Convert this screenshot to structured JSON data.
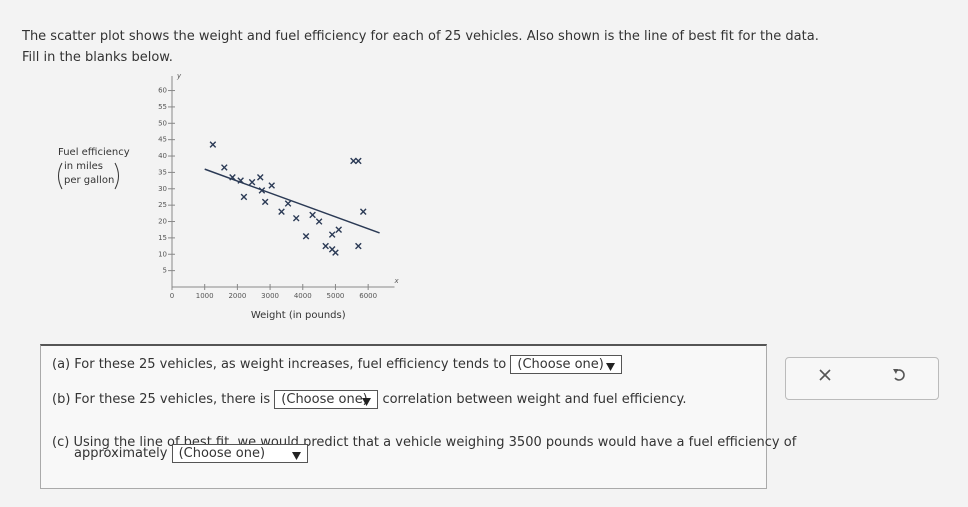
{
  "prompt": {
    "text": "The scatter plot shows the weight and fuel efficiency for each of 25 vehicles. Also shown is the line of best fit for the data.",
    "instruction": "Fill in the blanks below."
  },
  "chart_data": {
    "type": "scatter",
    "x_label": "Weight (in pounds)",
    "y_label": [
      "Fuel efficiency",
      "in miles",
      "per gallon"
    ],
    "x_axis_letter": "x",
    "y_axis_letter": "y",
    "x": [
      1250,
      5550,
      5700,
      1600,
      1850,
      2100,
      2450,
      2700,
      3050,
      2750,
      2200,
      2850,
      3550,
      3350,
      3800,
      4300,
      4500,
      5100,
      4900,
      5850,
      4100,
      5700,
      4700,
      4900,
      5000
    ],
    "values": [
      43.5,
      38.5,
      38.5,
      36.5,
      33.5,
      32.5,
      32,
      33.5,
      31,
      29.5,
      27.5,
      26,
      25.5,
      23,
      21,
      22,
      20,
      17.5,
      16,
      23,
      15.5,
      12.5,
      12.5,
      11.5,
      10.5
    ],
    "color": "#2b3a55",
    "fit_line": {
      "x": [
        1000,
        6350
      ],
      "values": [
        36,
        16.5
      ],
      "color": "#2b3a55"
    },
    "xlim": [
      0,
      6500
    ],
    "ylim": [
      0,
      62
    ],
    "xticks": [
      0,
      1000,
      2000,
      3000,
      4000,
      5000,
      6000
    ],
    "yticks": [
      5,
      10,
      15,
      20,
      25,
      30,
      35,
      40,
      45,
      50,
      55,
      60
    ]
  },
  "questions": [
    {
      "label": "(a)",
      "before": "For these 25 vehicles, as weight increases, fuel efficiency tends to",
      "dropdown": "(Choose one)"
    },
    {
      "label": "(b)",
      "before": "For these 25 vehicles, there is",
      "dropdown": "(Choose one)",
      "after": "correlation between weight and fuel efficiency."
    },
    {
      "label": "(c)",
      "before": "Using the line of best fit, we would predict that a vehicle weighing 3500 pounds would have a fuel efficiency of",
      "before2": "approximately",
      "dropdown": "(Choose one)"
    }
  ]
}
